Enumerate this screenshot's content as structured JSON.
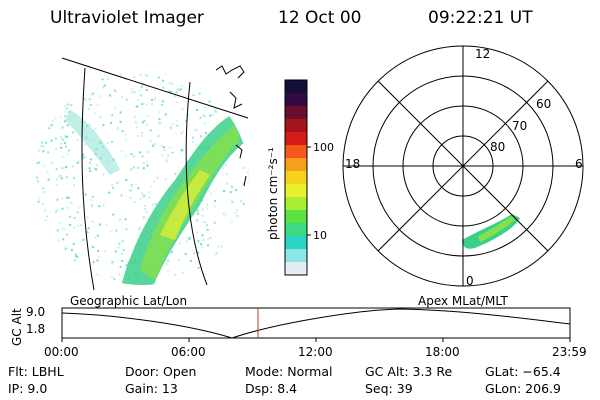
{
  "header": {
    "instrument": "Ultraviolet Imager",
    "date": "12 Oct 00",
    "time": "09:22:21 UT"
  },
  "colorbar": {
    "label": "photon cm⁻²s⁻¹",
    "tick_labels": [
      "100",
      "10"
    ],
    "colors": [
      "#120f3a",
      "#330a40",
      "#6b0d2c",
      "#a4141c",
      "#d41c18",
      "#f4581a",
      "#f79e1e",
      "#f6d21c",
      "#e9ef2c",
      "#a8ee37",
      "#5ce243",
      "#3dd983",
      "#2bd5c3",
      "#8fe6e8",
      "#e4eef0"
    ]
  },
  "polar_plot": {
    "mlt_labels": [
      "12",
      "18",
      "6",
      "0"
    ],
    "lat_labels": [
      "60",
      "70",
      "80"
    ]
  },
  "timeline": {
    "left_label": "Geographic Lat/Lon",
    "right_label": "Apex MLat/MLT",
    "y_axis_title": "GC Alt",
    "y_ticks": [
      "9.0",
      "1.8"
    ],
    "x_ticks": [
      "00:00",
      "06:00",
      "12:00",
      "18:00",
      "23:59"
    ],
    "marker_color": "#c0392b"
  },
  "footer": {
    "flt": "Flt: LBHL",
    "ip": "IP:  9.0",
    "door": "Door: Open",
    "gain": "Gain: 13",
    "mode": "Mode: Normal",
    "dsp": "Dsp:     8.4",
    "gcalt": "GC Alt: 3.3 Re",
    "seq": "Seq: 39",
    "glat": "GLat: −65.4",
    "glon": "GLon: 206.9"
  }
}
